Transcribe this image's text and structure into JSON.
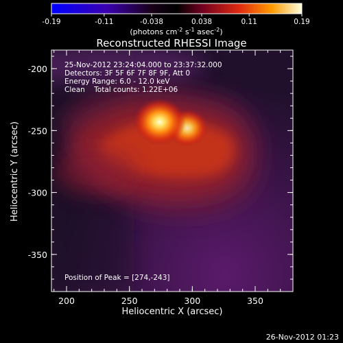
{
  "chart_data": {
    "type": "heatmap",
    "title": "Reconstructed RHESSI Image",
    "xlabel": "Heliocentric X (arcsec)",
    "ylabel": "Heliocentric Y (arcsec)",
    "xlim": [
      188,
      380
    ],
    "ylim": [
      -380,
      -185
    ],
    "x_ticks": [
      "200",
      "250",
      "300",
      "350"
    ],
    "x_tick_values": [
      200,
      250,
      300,
      350
    ],
    "y_ticks": [
      "-200",
      "-250",
      "-300",
      "-350"
    ],
    "y_tick_values": [
      -200,
      -250,
      -300,
      -350
    ],
    "colorbar": {
      "range": [
        -0.19,
        0.19
      ],
      "ticks": [
        "-0.19",
        "-0.11",
        "-0.038",
        "0.038",
        "0.11",
        "0.19"
      ],
      "tick_values": [
        -0.19,
        -0.11,
        -0.038,
        0.038,
        0.11,
        0.19
      ],
      "units_text": "(photons cm",
      "units_exp1": "-2",
      "units_mid": " s",
      "units_exp2": "-1",
      "units_end": " asec",
      "units_exp3": "-2",
      "units_close": ")",
      "colormap": [
        "#0000ff",
        "#3300aa",
        "#000000",
        "#4a0a5a",
        "#c01020",
        "#ff5a00",
        "#ffd020",
        "#ffffd0"
      ]
    },
    "sources": [
      {
        "x": 274,
        "y": -243,
        "value": 0.19
      },
      {
        "x": 296,
        "y": -248,
        "value": 0.13
      }
    ],
    "annotations": {
      "time_range": "25-Nov-2012 23:24:04.000 to 23:37:32.000",
      "detectors": "Detectors: 3F 5F 6F 7F 8F 9F, Att 0",
      "energy": "Energy Range: 6.0 - 12.0 keV",
      "clean": "Clean    Total counts: 1.22E+06",
      "peak": "Position of Peak = [274,-243]"
    },
    "timestamp": "26-Nov-2012 01:23"
  }
}
